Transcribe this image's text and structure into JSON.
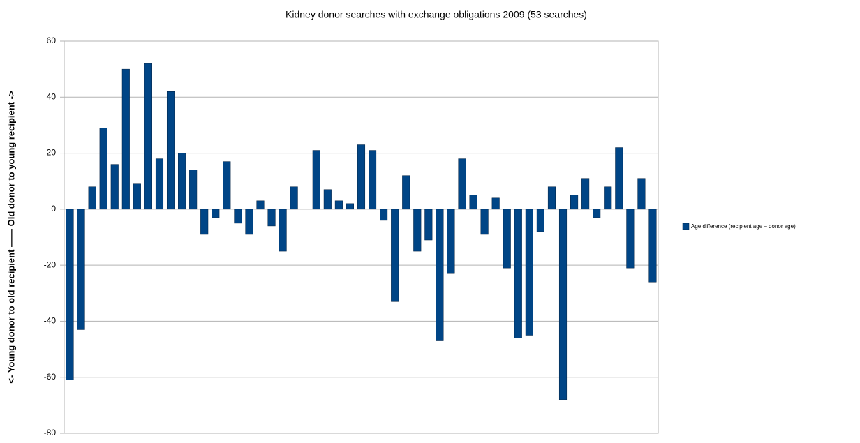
{
  "chart_data": {
    "type": "bar",
    "title": "Kidney donor searches with exchange obligations 2009 (53 searches)",
    "y_label": "<- Young donor to old recipient   —— Old donor to young recipient ->",
    "series": [
      {
        "name": "Age difference (recipient age – donor age)",
        "color": "#004586",
        "values": [
          -61,
          -43,
          8,
          29,
          16,
          50,
          9,
          52,
          18,
          42,
          20,
          14,
          -9,
          -3,
          17,
          -5,
          -9,
          3,
          -6,
          -15,
          8,
          0,
          21,
          7,
          3,
          2,
          23,
          21,
          -4,
          -33,
          12,
          -15,
          -11,
          -47,
          -23,
          18,
          5,
          -9,
          4,
          -21,
          -46,
          -45,
          -8,
          8,
          -68,
          5,
          11,
          -3,
          8,
          22,
          -21,
          11,
          -26
        ]
      }
    ],
    "ylim": [
      -80,
      60
    ],
    "yticks": [
      -80,
      -60,
      -40,
      -20,
      0,
      20,
      40,
      60
    ],
    "grid": true,
    "legend": "right"
  }
}
